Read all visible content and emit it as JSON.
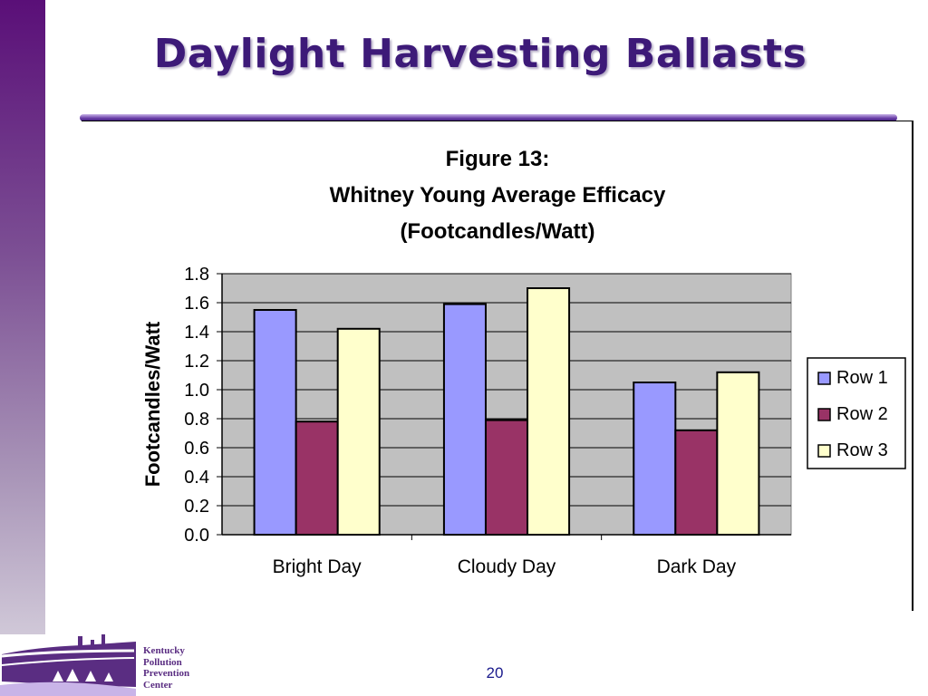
{
  "slide": {
    "title": "Daylight Harvesting Ballasts",
    "page_number": "20",
    "logo_lines": [
      "Kentucky",
      "Pollution",
      "Prevention",
      "Center"
    ]
  },
  "colors": {
    "title": "#3d1a78",
    "plot_background": "#c0c0c0",
    "logo": "#5a2d82"
  },
  "chart_data": {
    "type": "bar",
    "title": [
      "Figure 13:",
      "Whitney Young Average Efficacy",
      "(Footcandles/Watt)"
    ],
    "xlabel": "",
    "ylabel": "Footcandles/Watt",
    "categories": [
      "Bright Day",
      "Cloudy Day",
      "Dark Day"
    ],
    "series": [
      {
        "name": "Row 1",
        "color": "#9999ff",
        "values": [
          1.55,
          1.59,
          1.05
        ]
      },
      {
        "name": "Row 2",
        "color": "#993366",
        "values": [
          0.78,
          0.79,
          0.72
        ]
      },
      {
        "name": "Row 3",
        "color": "#ffffcc",
        "values": [
          1.42,
          1.7,
          1.12
        ]
      }
    ],
    "ylim": [
      0,
      1.8
    ],
    "yticks": [
      "0.0",
      "0.2",
      "0.4",
      "0.6",
      "0.8",
      "1.0",
      "1.2",
      "1.4",
      "1.6",
      "1.8"
    ],
    "grid": true,
    "legend": "right"
  }
}
